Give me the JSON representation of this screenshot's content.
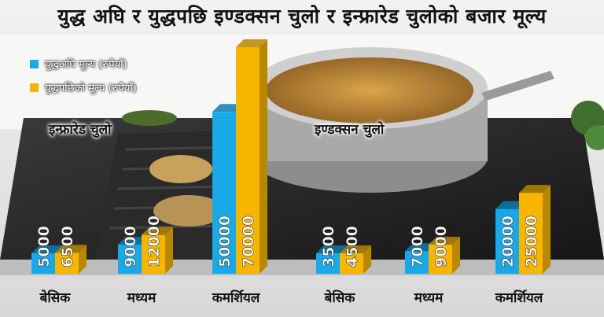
{
  "title": "युद्ध अघि र युद्धपछि इण्डक्सन चुलो र इन्फ्रारेड चुलोको बजार मूल्य",
  "legend": [
    {
      "label": "युद्धअघि मूल्य (रुपैयाँ)",
      "color": "#1aa9e8"
    },
    {
      "label": "युद्धपछिको मूल्य (रुपैयाँ)",
      "color": "#f7b500"
    }
  ],
  "chart_data": {
    "type": "bar",
    "title": "युद्ध अघि र युद्धपछि इण्डक्सन चुलो र इन्फ्रारेड चुलोको बजार मूल्य",
    "groups": [
      {
        "name": "इन्फ्रारेड चुलो",
        "categories": [
          "बेसिक",
          "मध्यम",
          "कमर्शियल"
        ],
        "series": [
          {
            "name": "युद्धअघि मूल्य (रुपैयाँ)",
            "values": [
              5000,
              9000,
              50000
            ]
          },
          {
            "name": "युद्धपछिको मूल्य (रुपैयाँ)",
            "values": [
              6500,
              12000,
              70000
            ]
          }
        ]
      },
      {
        "name": "इण्डक्सन चुलो",
        "categories": [
          "बेसिक",
          "मध्यम",
          "कमर्शियल"
        ],
        "series": [
          {
            "name": "युद्धअघि मूल्य (रुपैयाँ)",
            "values": [
              3500,
              7000,
              20000
            ]
          },
          {
            "name": "युद्धपछिको मूल्य (रुपैयाँ)",
            "values": [
              4500,
              9000,
              25000
            ]
          }
        ]
      }
    ],
    "colors": {
      "before": "#1aa9e8",
      "after": "#f7b500",
      "before_side": "#0e7bb0",
      "after_side": "#b98700"
    },
    "value_labels": "inside-bar-vertical"
  }
}
